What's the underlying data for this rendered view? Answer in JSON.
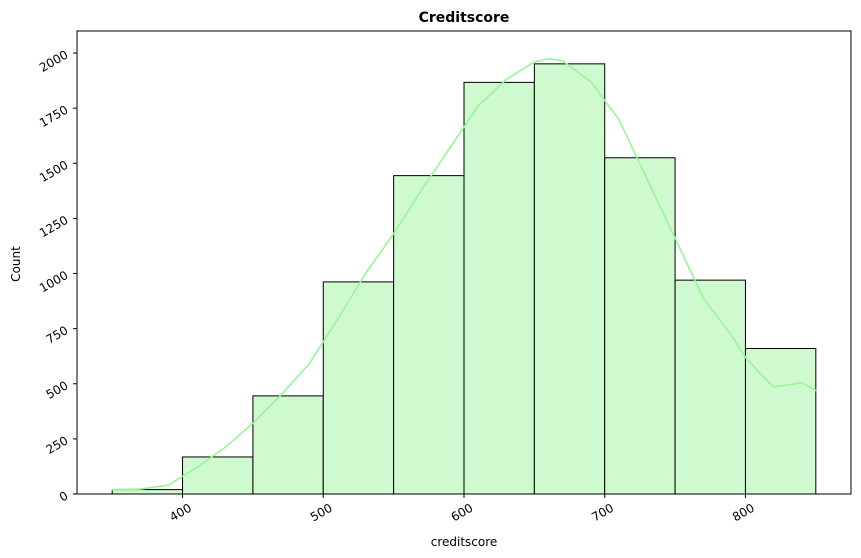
{
  "chart_data": {
    "type": "bar",
    "title": "Creditscore",
    "xlabel": "creditscore",
    "ylabel": "Count",
    "xlim": [
      325,
      875
    ],
    "ylim": [
      0,
      2100
    ],
    "xticks": [
      400,
      500,
      600,
      700,
      800
    ],
    "yticks": [
      0,
      250,
      500,
      750,
      1000,
      1250,
      1500,
      1750,
      2000
    ],
    "tick_rotation_deg": 30,
    "grid": false,
    "bins": [
      {
        "x0": 350,
        "x1": 400,
        "count": 20
      },
      {
        "x0": 400,
        "x1": 450,
        "count": 168
      },
      {
        "x0": 450,
        "x1": 500,
        "count": 445
      },
      {
        "x0": 500,
        "x1": 550,
        "count": 962
      },
      {
        "x0": 550,
        "x1": 600,
        "count": 1444
      },
      {
        "x0": 600,
        "x1": 650,
        "count": 1867
      },
      {
        "x0": 650,
        "x1": 700,
        "count": 1951
      },
      {
        "x0": 700,
        "x1": 750,
        "count": 1525
      },
      {
        "x0": 750,
        "x1": 800,
        "count": 970
      },
      {
        "x0": 800,
        "x1": 850,
        "count": 660
      }
    ],
    "kde": {
      "x": [
        350,
        370,
        390,
        410,
        430,
        450,
        470,
        490,
        510,
        530,
        550,
        570,
        590,
        610,
        630,
        650,
        660,
        670,
        690,
        710,
        730,
        750,
        770,
        790,
        800,
        810,
        820,
        830,
        840,
        850
      ],
      "y": [
        20,
        22,
        40,
        120,
        210,
        320,
        450,
        590,
        790,
        1000,
        1180,
        1380,
        1570,
        1760,
        1880,
        1960,
        1975,
        1965,
        1870,
        1700,
        1430,
        1160,
        890,
        720,
        620,
        550,
        485,
        495,
        505,
        470
      ]
    },
    "colors": {
      "bar_fill": "#cffacf",
      "bar_edge": "#000000",
      "kde_line": "#98f598"
    }
  }
}
